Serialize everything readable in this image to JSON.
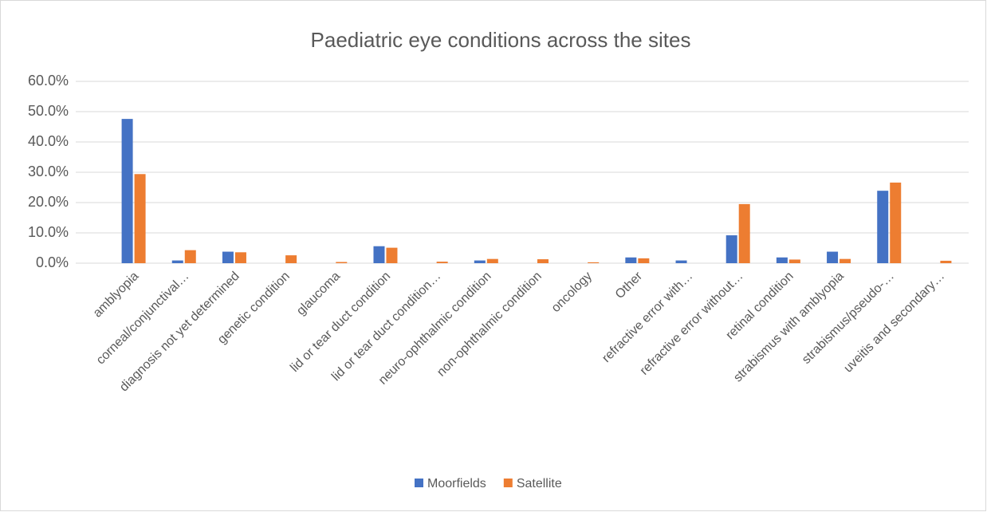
{
  "chart_data": {
    "type": "bar",
    "title": "Paediatric eye conditions across the sites",
    "categories": [
      "amblyopia",
      "corneal/conjunctival…",
      "diagnosis not yet determined",
      "genetic condition",
      "glaucoma",
      "lid or tear duct condition",
      "lid or tear duct condition…",
      "neuro-ophthalmic condition",
      "non-ophthalmic condition",
      "oncology",
      "Other",
      "refractive error with…",
      "refractive error without…",
      "retinal condition",
      "strabismus with amblyopia",
      "strabismus/pseudo-…",
      "uveitis and secondary…"
    ],
    "series": [
      {
        "name": "Moorfields",
        "color": "#4472c4",
        "values": [
          47.6,
          0.9,
          3.8,
          0,
          0,
          5.6,
          0,
          0.9,
          0,
          0,
          1.9,
          0.9,
          9.2,
          1.9,
          3.8,
          23.9,
          0
        ]
      },
      {
        "name": "Satellite",
        "color": "#ed7d31",
        "values": [
          29.4,
          4.3,
          3.6,
          2.6,
          0.4,
          5.1,
          0.5,
          1.4,
          1.3,
          0.3,
          1.6,
          0,
          19.5,
          1.2,
          1.4,
          26.6,
          0.8
        ]
      }
    ],
    "ylim": [
      0,
      60
    ],
    "yticks": [
      {
        "value": 0,
        "label": "0.0%"
      },
      {
        "value": 10,
        "label": "10.0%"
      },
      {
        "value": 20,
        "label": "20.0%"
      },
      {
        "value": 30,
        "label": "30.0%"
      },
      {
        "value": 40,
        "label": "40.0%"
      },
      {
        "value": 50,
        "label": "50.0%"
      },
      {
        "value": 60,
        "label": "60.0%"
      }
    ],
    "grid": true,
    "legend": "bottom"
  }
}
